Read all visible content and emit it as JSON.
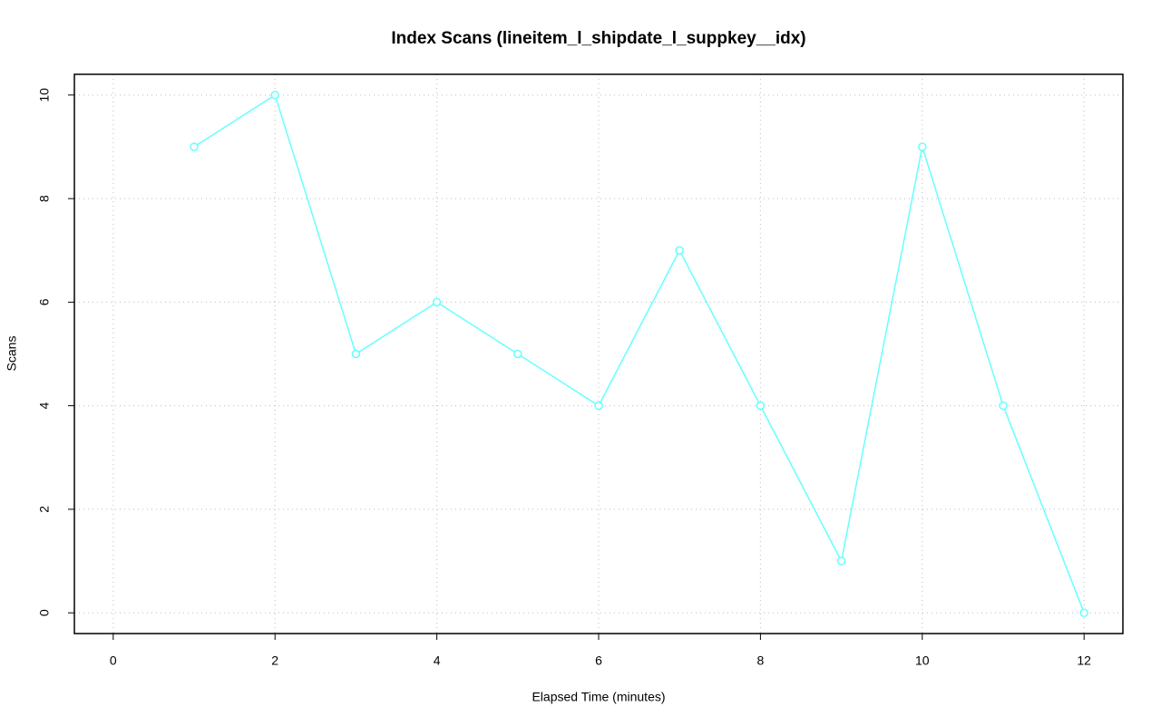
{
  "chart_data": {
    "type": "line",
    "title": "Index Scans (lineitem_l_shipdate_l_suppkey__idx)",
    "x_label": "Elapsed Time (minutes)",
    "y_label": "Scans",
    "x": [
      1,
      2,
      3,
      4,
      5,
      6,
      7,
      8,
      9,
      10,
      11,
      12
    ],
    "series": [
      {
        "color": "#66ffff",
        "values": [
          9,
          10,
          5,
          6,
          5,
          4,
          7,
          4,
          1,
          9,
          4,
          0
        ]
      }
    ],
    "xlim": [
      -0.48,
      12.48
    ],
    "xticks": [
      0,
      2,
      4,
      6,
      8,
      10,
      12
    ],
    "ylim": [
      -0.4,
      10.4
    ],
    "yticks": [
      0,
      2,
      4,
      6,
      8,
      10
    ],
    "grid": true
  }
}
